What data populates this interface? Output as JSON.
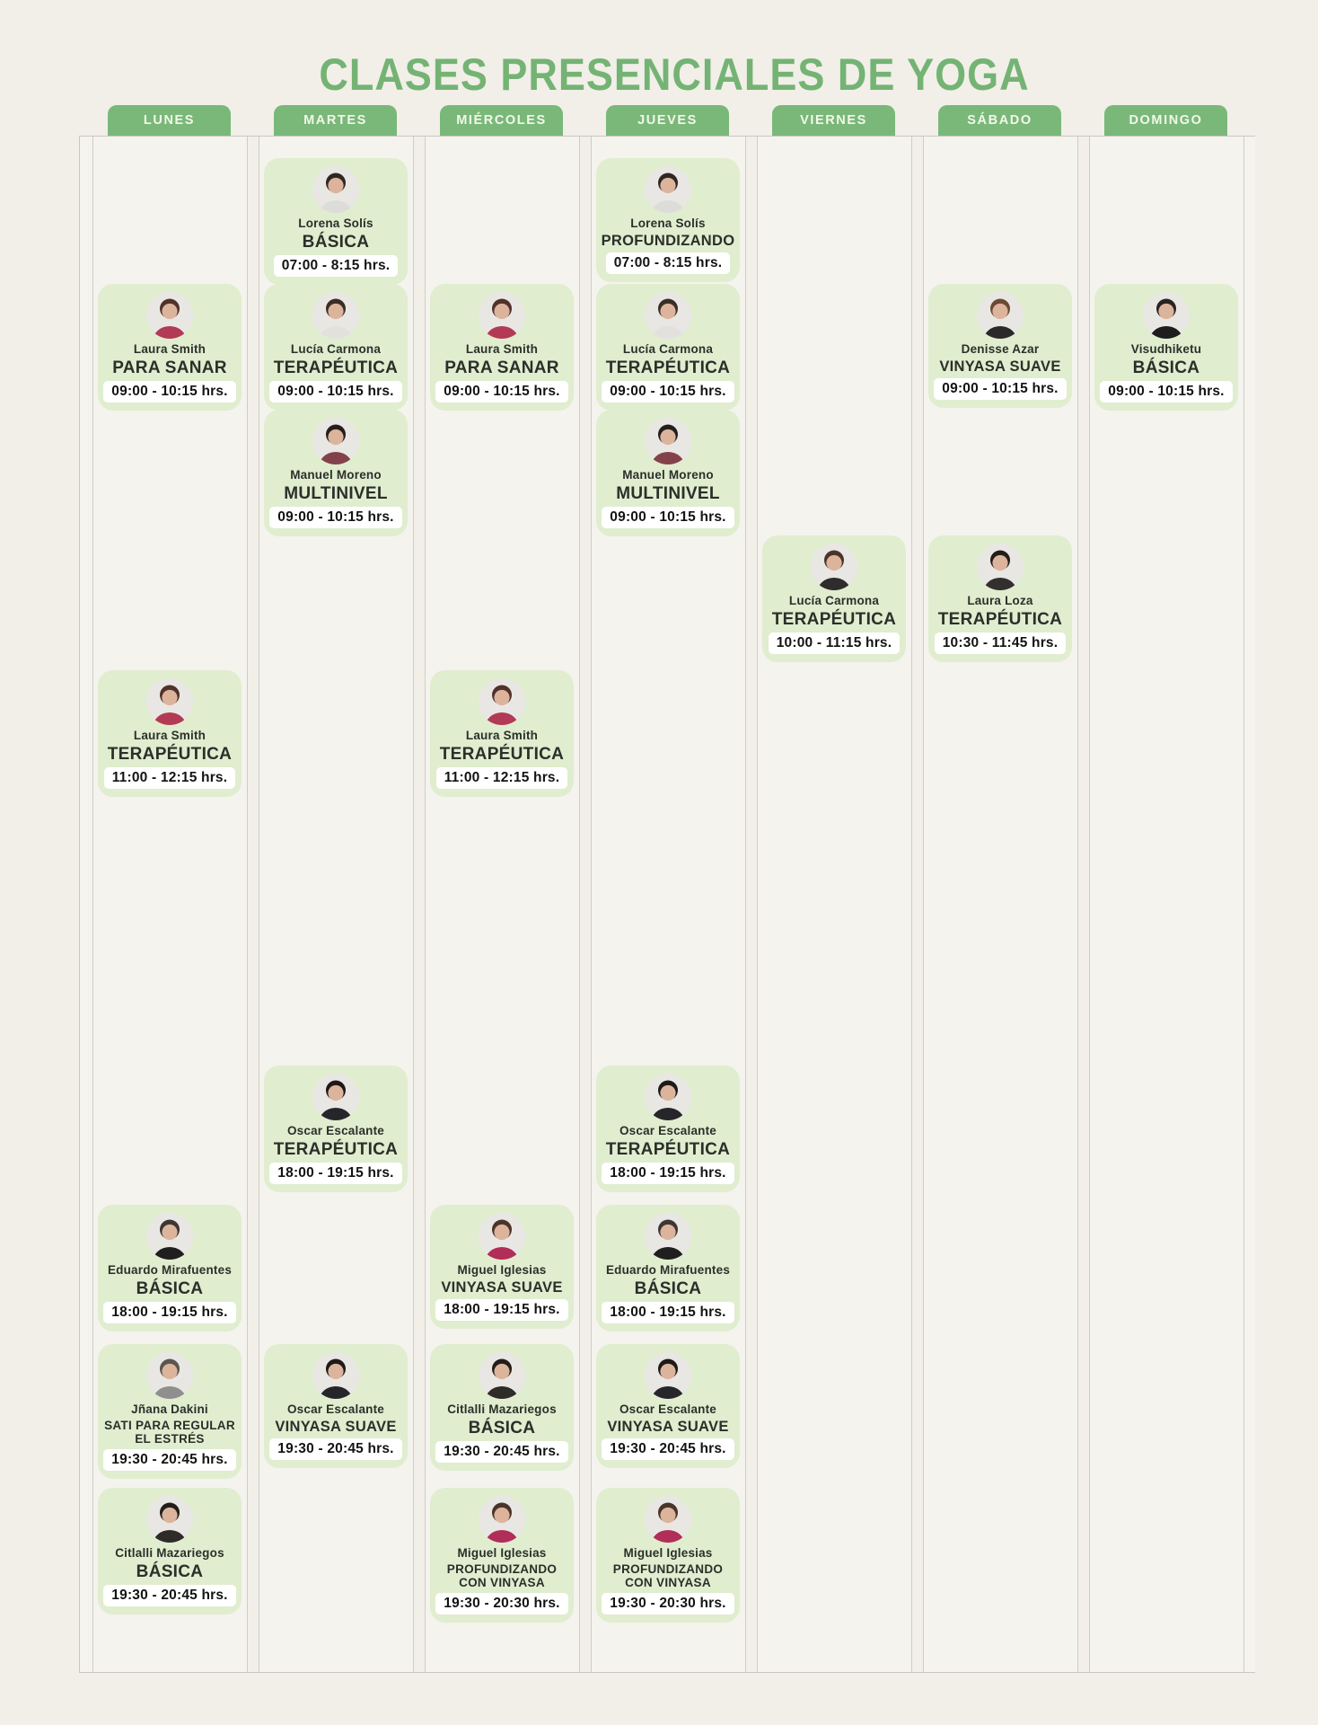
{
  "title": "CLASES PRESENCIALES DE YOGA",
  "colors": {
    "accent_green": "#7ab87a",
    "title_green": "#74b374",
    "card_green": "#e0edcf",
    "page_background": "#f1efe8",
    "grid_line": "#c9c7c0",
    "tab_text": "#f2f8e8",
    "time_pill_background": "#ffffff",
    "text_dark": "#2b2f2a",
    "avatar_skin": "#dcb49c"
  },
  "days": [
    {
      "label": "LUNES",
      "classes": [
        {
          "instructor": "Laura Smith",
          "class_name": "PARA SANAR",
          "time": "09:00 - 10:15 hrs.",
          "row": "0900",
          "avatar": {
            "shirt": "#b23a55",
            "hair": "#50322b"
          }
        },
        {
          "instructor": "Laura Smith",
          "class_name": "TERAPÉUTICA",
          "time": "11:00 - 12:15 hrs.",
          "row": "1100",
          "avatar": {
            "shirt": "#b23a55",
            "hair": "#50322b"
          }
        },
        {
          "instructor": "Eduardo Mirafuentes",
          "class_name": "BÁSICA",
          "time": "18:00 - 19:15 hrs.",
          "row": "1800b",
          "avatar": {
            "shirt": "#1f1f1f",
            "hair": "#3c3734"
          }
        },
        {
          "instructor": "Jñana Dakini",
          "class_name": "SATI PARA REGULAR EL ESTRÉS",
          "time": "19:30 - 20:45 hrs.",
          "row": "1930a",
          "avatar": {
            "shirt": "#8f8f8d",
            "hair": "#5a5550"
          }
        },
        {
          "instructor": "Citlalli Mazariegos",
          "class_name": "BÁSICA",
          "time": "19:30 - 20:45 hrs.",
          "row": "1930b",
          "avatar": {
            "shirt": "#2e2b28",
            "hair": "#221d1a"
          }
        }
      ]
    },
    {
      "label": "MARTES",
      "classes": [
        {
          "instructor": "Lorena Solís",
          "class_name": "BÁSICA",
          "time": "07:00 - 8:15 hrs.",
          "row": "0700",
          "avatar": {
            "shirt": "#dcdcd8",
            "hair": "#2f2724"
          }
        },
        {
          "instructor": "Lucía Carmona",
          "class_name": "TERAPÉUTICA",
          "time": "09:00 - 10:15 hrs.",
          "row": "0900",
          "avatar": {
            "shirt": "#e3e1dd",
            "hair": "#3a2d26"
          }
        },
        {
          "instructor": "Manuel Moreno",
          "class_name": "MULTINIVEL",
          "time": "09:00 - 10:15 hrs.",
          "row": "0900x",
          "avatar": {
            "shirt": "#83424a",
            "hair": "#241f1c"
          }
        },
        {
          "instructor": "Oscar Escalante",
          "class_name": "TERAPÉUTICA",
          "time": "18:00 - 19:15 hrs.",
          "row": "1800a",
          "avatar": {
            "shirt": "#26262a",
            "hair": "#1d1a18"
          }
        },
        {
          "instructor": "Oscar Escalante",
          "class_name": "VINYASA SUAVE",
          "time": "19:30 - 20:45 hrs.",
          "row": "1930a",
          "avatar": {
            "shirt": "#26262a",
            "hair": "#1d1a18"
          }
        }
      ]
    },
    {
      "label": "MIÉRCOLES",
      "classes": [
        {
          "instructor": "Laura Smith",
          "class_name": "PARA SANAR",
          "time": "09:00 - 10:15 hrs.",
          "row": "0900",
          "avatar": {
            "shirt": "#b23a55",
            "hair": "#50322b"
          }
        },
        {
          "instructor": "Laura Smith",
          "class_name": "TERAPÉUTICA",
          "time": "11:00 - 12:15 hrs.",
          "row": "1100",
          "avatar": {
            "shirt": "#b23a55",
            "hair": "#50322b"
          }
        },
        {
          "instructor": "Miguel Iglesias",
          "class_name": "VINYASA SUAVE",
          "time": "18:00 - 19:15 hrs.",
          "row": "1800b",
          "avatar": {
            "shirt": "#b12e59",
            "hair": "#4a342a"
          }
        },
        {
          "instructor": "Citlalli Mazariegos",
          "class_name": "BÁSICA",
          "time": "19:30 - 20:45 hrs.",
          "row": "1930a",
          "avatar": {
            "shirt": "#2e2b28",
            "hair": "#221d1a"
          }
        },
        {
          "instructor": "Miguel Iglesias",
          "class_name": "PROFUNDIZANDO CON VINYASA",
          "time": "19:30 - 20:30 hrs.",
          "row": "1930b",
          "avatar": {
            "shirt": "#b12e59",
            "hair": "#4a342a"
          }
        }
      ]
    },
    {
      "label": "JUEVES",
      "classes": [
        {
          "instructor": "Lorena Solís",
          "class_name": "PROFUNDIZANDO",
          "time": "07:00 - 8:15 hrs.",
          "row": "0700",
          "avatar": {
            "shirt": "#dcdcd8",
            "hair": "#2f2724"
          }
        },
        {
          "instructor": "Lucía Carmona",
          "class_name": "TERAPÉUTICA",
          "time": "09:00 - 10:15 hrs.",
          "row": "0900",
          "avatar": {
            "shirt": "#e3e1dd",
            "hair": "#3a2d26"
          }
        },
        {
          "instructor": "Manuel Moreno",
          "class_name": "MULTINIVEL",
          "time": "09:00 - 10:15 hrs.",
          "row": "0900x",
          "avatar": {
            "shirt": "#83424a",
            "hair": "#241f1c"
          }
        },
        {
          "instructor": "Oscar Escalante",
          "class_name": "TERAPÉUTICA",
          "time": "18:00 - 19:15 hrs.",
          "row": "1800a",
          "avatar": {
            "shirt": "#26262a",
            "hair": "#1d1a18"
          }
        },
        {
          "instructor": "Eduardo Mirafuentes",
          "class_name": "BÁSICA",
          "time": "18:00 - 19:15 hrs.",
          "row": "1800b",
          "avatar": {
            "shirt": "#1f1f1f",
            "hair": "#3c3734"
          }
        },
        {
          "instructor": "Oscar Escalante",
          "class_name": "VINYASA SUAVE",
          "time": "19:30 - 20:45 hrs.",
          "row": "1930a",
          "avatar": {
            "shirt": "#26262a",
            "hair": "#1d1a18"
          }
        },
        {
          "instructor": "Miguel Iglesias",
          "class_name": "PROFUNDIZANDO CON VINYASA",
          "time": "19:30 - 20:30 hrs.",
          "row": "1930b",
          "avatar": {
            "shirt": "#b12e59",
            "hair": "#4a342a"
          }
        }
      ]
    },
    {
      "label": "VIERNES",
      "classes": [
        {
          "instructor": "Lucía Carmona",
          "class_name": "TERAPÉUTICA",
          "time": "10:00 - 11:15 hrs.",
          "row": "1000",
          "avatar": {
            "shirt": "#2e2d2b",
            "hair": "#4a342c"
          }
        }
      ]
    },
    {
      "label": "SÁBADO",
      "classes": [
        {
          "instructor": "Denisse Azar",
          "class_name": "VINYASA SUAVE",
          "time": "09:00 - 10:15 hrs.",
          "row": "0900",
          "avatar": {
            "shirt": "#2a2a2a",
            "hair": "#6b4a33"
          }
        },
        {
          "instructor": "Laura Loza",
          "class_name": "TERAPÉUTICA",
          "time": "10:30 - 11:45 hrs.",
          "row": "1000",
          "avatar": {
            "shirt": "#332f2e",
            "hair": "#241c18"
          }
        }
      ]
    },
    {
      "label": "DOMINGO",
      "classes": [
        {
          "instructor": "Visudhiketu",
          "class_name": "BÁSICA",
          "time": "09:00 - 10:15 hrs.",
          "row": "0900",
          "avatar": {
            "shirt": "#1d1d1d",
            "hair": "#2a2220"
          }
        }
      ]
    }
  ]
}
